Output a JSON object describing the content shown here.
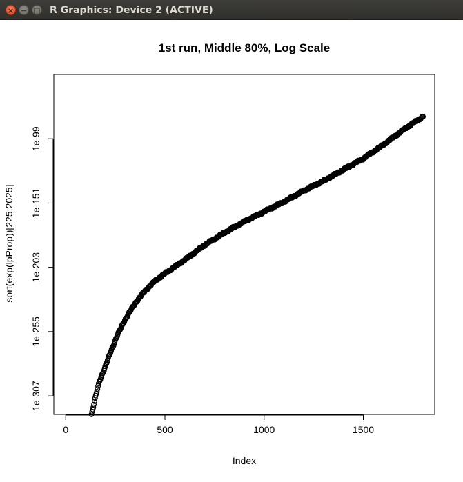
{
  "window": {
    "title": "R Graphics: Device 2 (ACTIVE)",
    "close_glyph": "×",
    "minimize_glyph": "−",
    "maximize_glyph": "□"
  },
  "chart_data": {
    "type": "scatter",
    "title": "1st run, Middle 80%, Log Scale",
    "xlabel": "Index",
    "ylabel": "sort(exp(lpProp))[225:2025]",
    "log_y": true,
    "xlim": [
      -60,
      1860
    ],
    "ylim_log10": [
      -322,
      -47
    ],
    "x_ticks": [
      0,
      500,
      1000,
      1500
    ],
    "y_ticks": [
      {
        "exp": -307,
        "label": "1e-307"
      },
      {
        "exp": -255,
        "label": "1e-255"
      },
      {
        "exp": -203,
        "label": "1e-203"
      },
      {
        "exp": -151,
        "label": "1e-151"
      },
      {
        "exp": -99,
        "label": "1e-99"
      }
    ],
    "grid": false,
    "point_style": "open-circle",
    "n_points": 1801,
    "curve_points_log10": [
      [
        130,
        -322
      ],
      [
        150,
        -308
      ],
      [
        170,
        -295
      ],
      [
        200,
        -283
      ],
      [
        230,
        -270
      ],
      [
        260,
        -258
      ],
      [
        300,
        -245
      ],
      [
        350,
        -232
      ],
      [
        400,
        -222
      ],
      [
        450,
        -214
      ],
      [
        500,
        -208
      ],
      [
        600,
        -197
      ],
      [
        700,
        -185
      ],
      [
        800,
        -175
      ],
      [
        900,
        -166
      ],
      [
        1000,
        -158
      ],
      [
        1100,
        -150
      ],
      [
        1200,
        -141
      ],
      [
        1300,
        -133
      ],
      [
        1400,
        -124
      ],
      [
        1500,
        -115
      ],
      [
        1600,
        -104
      ],
      [
        1700,
        -92
      ],
      [
        1801,
        -81
      ]
    ]
  }
}
